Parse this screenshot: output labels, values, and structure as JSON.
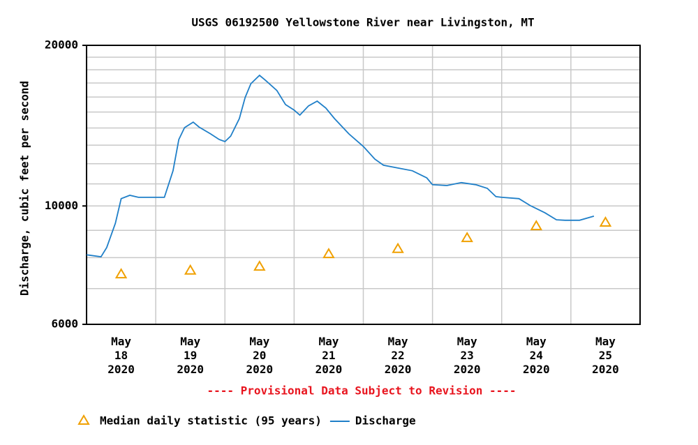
{
  "chart_data": {
    "type": "line",
    "title": "USGS 06192500 Yellowstone River near Livingston, MT",
    "ylabel": "Discharge, cubic feet per second",
    "note": "---- Provisional Data Subject to Revision ----",
    "log_y": true,
    "grid": true,
    "ylim": [
      6000,
      20000
    ],
    "yticks": [
      6000,
      10000,
      20000
    ],
    "yminor": [
      7000,
      8000,
      9000,
      11000,
      12000,
      13000,
      14000,
      15000,
      16000,
      17000,
      18000,
      19000
    ],
    "xlim": [
      "2020-05-18T00:00",
      "2020-05-26T00:00"
    ],
    "xticks": [
      {
        "value": "2020-05-18T12:00",
        "label": "May 18 2020"
      },
      {
        "value": "2020-05-19T12:00",
        "label": "May 19 2020"
      },
      {
        "value": "2020-05-20T12:00",
        "label": "May 20 2020"
      },
      {
        "value": "2020-05-21T12:00",
        "label": "May 21 2020"
      },
      {
        "value": "2020-05-22T12:00",
        "label": "May 22 2020"
      },
      {
        "value": "2020-05-23T12:00",
        "label": "May 23 2020"
      },
      {
        "value": "2020-05-24T12:00",
        "label": "May 24 2020"
      },
      {
        "value": "2020-05-25T12:00",
        "label": "May 25 2020"
      }
    ],
    "xminor": [
      "2020-05-19T00:00",
      "2020-05-20T00:00",
      "2020-05-21T00:00",
      "2020-05-22T00:00",
      "2020-05-23T00:00",
      "2020-05-24T00:00",
      "2020-05-25T00:00"
    ],
    "series": [
      {
        "name": "Median daily statistic (95 years)",
        "color": "#f0a000",
        "marker": "triangle",
        "x": [
          "2020-05-18T12:00",
          "2020-05-19T12:00",
          "2020-05-20T12:00",
          "2020-05-21T12:00",
          "2020-05-22T12:00",
          "2020-05-23T12:00",
          "2020-05-24T12:00",
          "2020-05-25T12:00"
        ],
        "values": [
          7450,
          7570,
          7700,
          8130,
          8310,
          8710,
          9170,
          9310
        ]
      },
      {
        "name": "Discharge",
        "color": "#1f7fc8",
        "x": [
          "2020-05-18T00:00",
          "2020-05-18T05:00",
          "2020-05-18T07:00",
          "2020-05-18T10:00",
          "2020-05-18T12:00",
          "2020-05-18T15:00",
          "2020-05-18T18:00",
          "2020-05-19T00:00",
          "2020-05-19T03:00",
          "2020-05-19T06:00",
          "2020-05-19T08:00",
          "2020-05-19T10:00",
          "2020-05-19T13:00",
          "2020-05-19T15:00",
          "2020-05-19T19:00",
          "2020-05-19T22:00",
          "2020-05-20T00:00",
          "2020-05-20T02:00",
          "2020-05-20T05:00",
          "2020-05-20T07:00",
          "2020-05-20T09:00",
          "2020-05-20T12:00",
          "2020-05-20T14:00",
          "2020-05-20T18:00",
          "2020-05-20T21:00",
          "2020-05-21T00:00",
          "2020-05-21T02:00",
          "2020-05-21T05:00",
          "2020-05-21T08:00",
          "2020-05-21T11:00",
          "2020-05-21T14:00",
          "2020-05-21T19:00",
          "2020-05-22T00:00",
          "2020-05-22T04:00",
          "2020-05-22T07:00",
          "2020-05-22T12:00",
          "2020-05-22T17:00",
          "2020-05-22T22:00",
          "2020-05-23T00:00",
          "2020-05-23T05:00",
          "2020-05-23T10:00",
          "2020-05-23T15:00",
          "2020-05-23T19:00",
          "2020-05-23T22:00",
          "2020-05-24T00:00",
          "2020-05-24T06:00",
          "2020-05-24T10:00",
          "2020-05-24T15:00",
          "2020-05-24T19:00",
          "2020-05-24T22:00",
          "2020-05-25T03:00",
          "2020-05-25T08:00"
        ],
        "values": [
          8100,
          8030,
          8360,
          9280,
          10320,
          10470,
          10380,
          10380,
          10380,
          11640,
          13320,
          14020,
          14360,
          14060,
          13650,
          13320,
          13200,
          13520,
          14580,
          15970,
          16950,
          17570,
          17210,
          16460,
          15490,
          15120,
          14800,
          15400,
          15720,
          15260,
          14580,
          13650,
          12930,
          12240,
          11920,
          11780,
          11640,
          11290,
          10960,
          10920,
          11060,
          10960,
          10790,
          10410,
          10380,
          10320,
          10010,
          9710,
          9420,
          9400,
          9400,
          9570
        ]
      }
    ]
  }
}
